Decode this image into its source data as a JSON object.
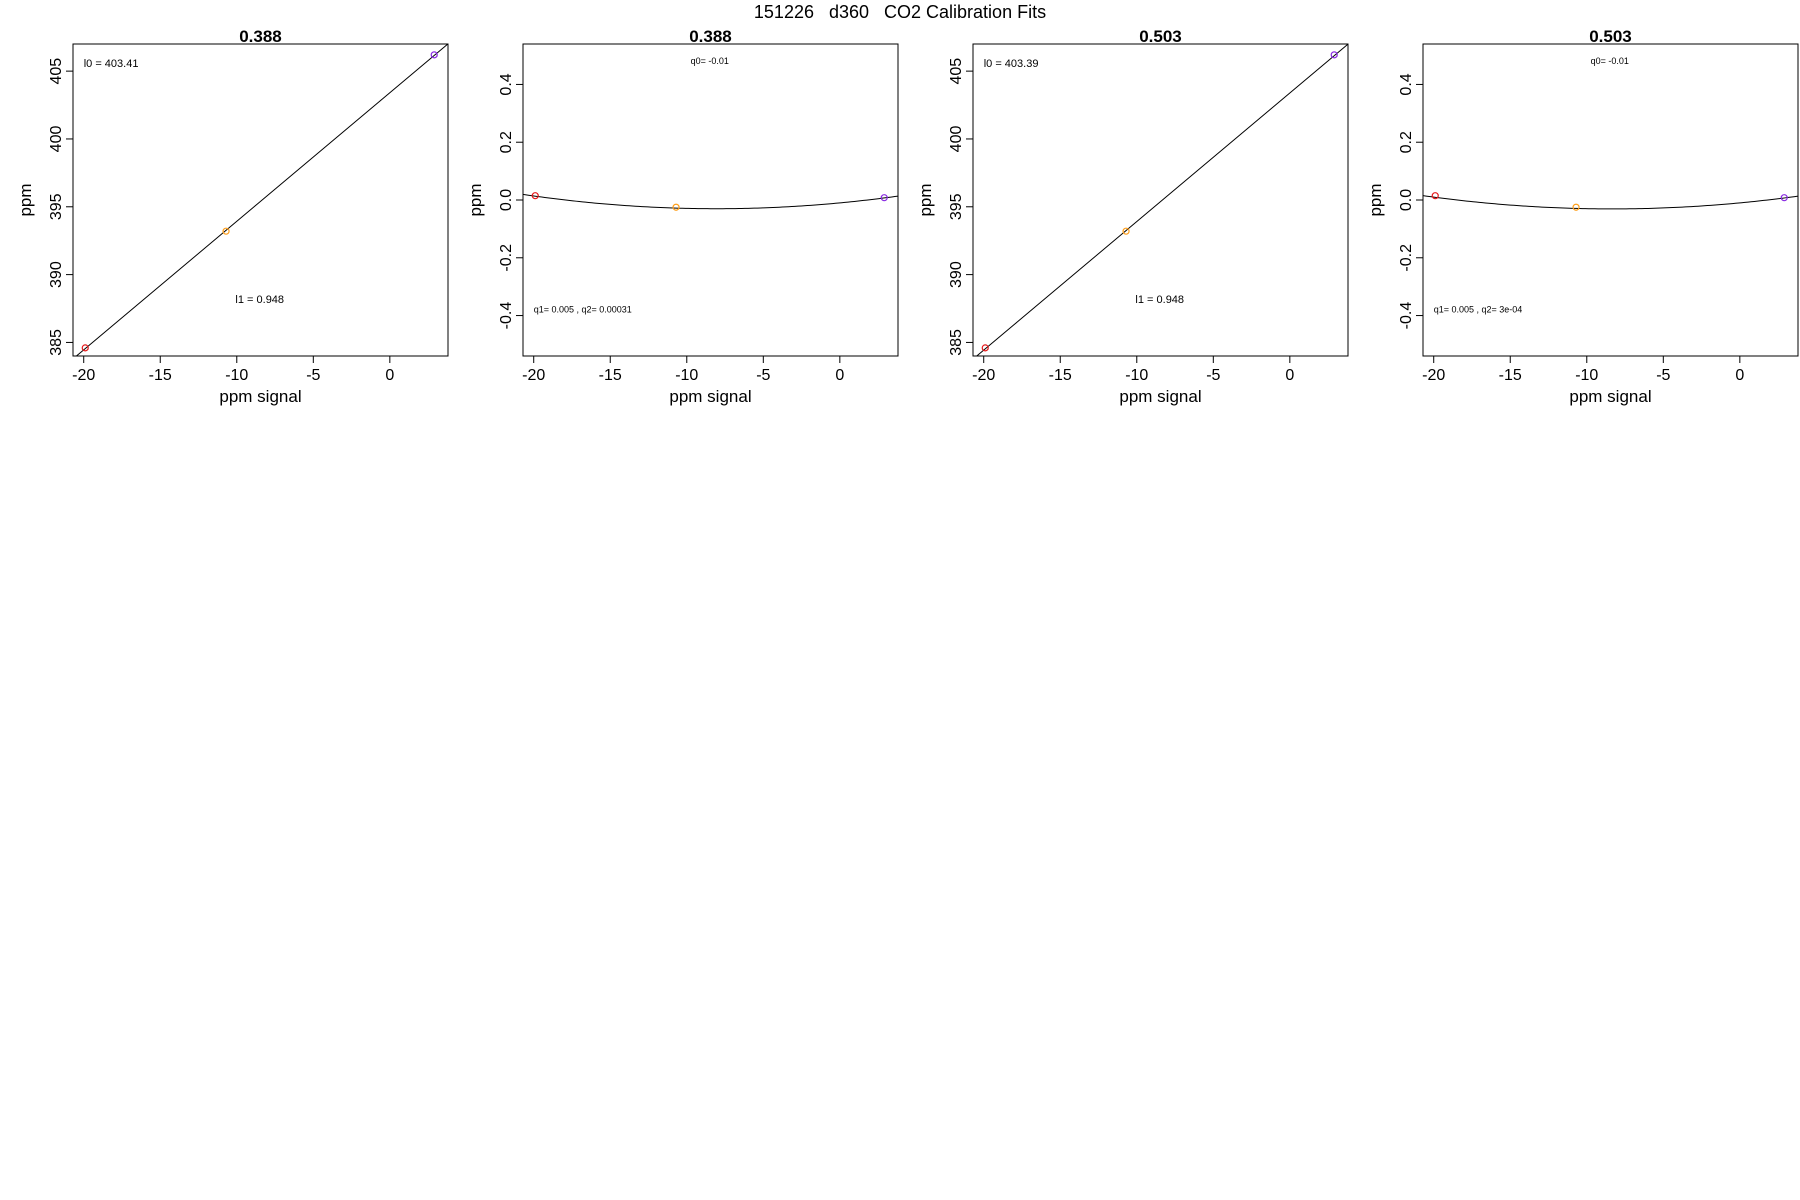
{
  "figure": {
    "title": "151226   d360   CO2 Calibration Fits"
  },
  "colors": {
    "axis": "#000000",
    "fit_line": "#000000",
    "point_low": "#e41a1c",
    "point_mid": "#ff9f1a",
    "point_high": "#8a2be2"
  },
  "chart_data": [
    {
      "type": "scatter",
      "title": "0.388",
      "xlabel": "ppm signal",
      "ylabel": "ppm",
      "xlim": [
        -20.7,
        3.8
      ],
      "ylim": [
        384,
        407
      ],
      "xticks": [
        -20,
        -15,
        -10,
        -5,
        0
      ],
      "yticks": [
        385,
        390,
        395,
        400,
        405
      ],
      "points": [
        {
          "x": -19.9,
          "y": 384.6,
          "color": "#e41a1c"
        },
        {
          "x": -10.7,
          "y": 393.2,
          "color": "#ff9f1a"
        },
        {
          "x": 2.9,
          "y": 406.2,
          "color": "#8a2be2"
        }
      ],
      "fit": {
        "model": "linear",
        "intercept": 403.41,
        "slope": 0.948
      },
      "annotations": [
        {
          "text": "l0 =  403.41",
          "x": -20,
          "y": 405.3,
          "anchor": "start",
          "size": "normal"
        },
        {
          "text": "l1 =  0.948",
          "x": -8.5,
          "y": 387.9,
          "anchor": "middle",
          "size": "normal"
        }
      ],
      "grid": false
    },
    {
      "type": "scatter",
      "title": "0.388",
      "xlabel": "ppm signal",
      "ylabel": "ppm",
      "xlim": [
        -20.7,
        3.8
      ],
      "ylim": [
        -0.54,
        0.54
      ],
      "xticks": [
        -20,
        -15,
        -10,
        -5,
        0
      ],
      "yticks": [
        -0.4,
        -0.2,
        0.0,
        0.2,
        0.4
      ],
      "ytick_labels": [
        "-0.4",
        "-0.2",
        "0.0",
        "0.2",
        "0.4"
      ],
      "points": [
        {
          "x": -19.9,
          "y": 0.015,
          "color": "#e41a1c"
        },
        {
          "x": -10.7,
          "y": -0.025,
          "color": "#ff9f1a"
        },
        {
          "x": 2.9,
          "y": 0.008,
          "color": "#8a2be2"
        }
      ],
      "fit": {
        "model": "quadratic",
        "q0": -0.01,
        "q1": 0.005,
        "q2": 0.00031
      },
      "annotations": [
        {
          "text": "q0= -0.01",
          "x": -8.5,
          "y": 0.47,
          "anchor": "middle",
          "size": "small"
        },
        {
          "text": "q1= 0.005 , q2= 0.00031",
          "x": -20,
          "y": -0.39,
          "anchor": "start",
          "size": "small"
        }
      ],
      "grid": false
    },
    {
      "type": "scatter",
      "title": "0.503",
      "xlabel": "ppm signal",
      "ylabel": "ppm",
      "xlim": [
        -20.7,
        3.8
      ],
      "ylim": [
        384,
        407
      ],
      "xticks": [
        -20,
        -15,
        -10,
        -5,
        0
      ],
      "yticks": [
        385,
        390,
        395,
        400,
        405
      ],
      "points": [
        {
          "x": -19.9,
          "y": 384.6,
          "color": "#e41a1c"
        },
        {
          "x": -10.7,
          "y": 393.2,
          "color": "#ff9f1a"
        },
        {
          "x": 2.9,
          "y": 406.2,
          "color": "#8a2be2"
        }
      ],
      "fit": {
        "model": "linear",
        "intercept": 403.39,
        "slope": 0.948
      },
      "annotations": [
        {
          "text": "l0 =  403.39",
          "x": -20,
          "y": 405.3,
          "anchor": "start",
          "size": "normal"
        },
        {
          "text": "l1 =  0.948",
          "x": -8.5,
          "y": 387.9,
          "anchor": "middle",
          "size": "normal"
        }
      ],
      "grid": false
    },
    {
      "type": "scatter",
      "title": "0.503",
      "xlabel": "ppm signal",
      "ylabel": "ppm",
      "xlim": [
        -20.7,
        3.8
      ],
      "ylim": [
        -0.54,
        0.54
      ],
      "xticks": [
        -20,
        -15,
        -10,
        -5,
        0
      ],
      "yticks": [
        -0.4,
        -0.2,
        0.0,
        0.2,
        0.4
      ],
      "ytick_labels": [
        "-0.4",
        "-0.2",
        "0.0",
        "0.2",
        "0.4"
      ],
      "points": [
        {
          "x": -19.9,
          "y": 0.015,
          "color": "#e41a1c"
        },
        {
          "x": -10.7,
          "y": -0.025,
          "color": "#ff9f1a"
        },
        {
          "x": 2.9,
          "y": 0.008,
          "color": "#8a2be2"
        }
      ],
      "fit": {
        "model": "quadratic",
        "q0": -0.01,
        "q1": 0.005,
        "q2": 0.0003
      },
      "annotations": [
        {
          "text": "q0= -0.01",
          "x": -8.5,
          "y": 0.47,
          "anchor": "middle",
          "size": "small"
        },
        {
          "text": "q1= 0.005 , q2= 3e-04",
          "x": -20,
          "y": -0.39,
          "anchor": "start",
          "size": "small"
        }
      ],
      "grid": false
    }
  ]
}
